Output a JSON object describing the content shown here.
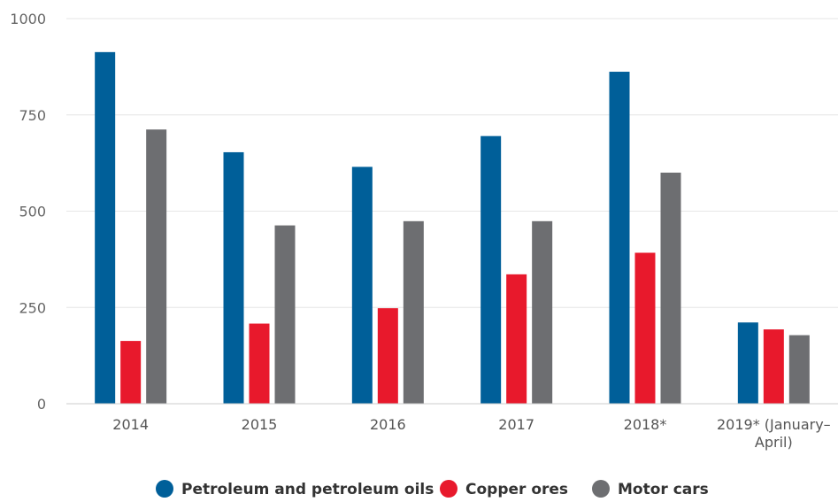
{
  "chart_data": {
    "type": "bar",
    "categories": [
      "2014",
      "2015",
      "2016",
      "2017",
      "2018*",
      "2019* (January–April)"
    ],
    "category_lines": [
      [
        "2014"
      ],
      [
        "2015"
      ],
      [
        "2016"
      ],
      [
        "2017"
      ],
      [
        "2018*"
      ],
      [
        "2019* (January–",
        "April)"
      ]
    ],
    "series": [
      {
        "name": "Petroleum and petroleum oils",
        "color": "#005f99",
        "values": [
          913,
          653,
          615,
          695,
          862,
          211
        ]
      },
      {
        "name": "Copper ores",
        "color": "#e8192c",
        "values": [
          163,
          208,
          248,
          336,
          392,
          193
        ]
      },
      {
        "name": "Motor cars",
        "color": "#6d6e71",
        "values": [
          712,
          463,
          474,
          474,
          600,
          178
        ]
      }
    ],
    "ylim": [
      0,
      1000
    ],
    "yticks": [
      0,
      250,
      500,
      750,
      1000
    ],
    "grid": true,
    "legend_position": "bottom-center",
    "title": "",
    "xlabel": "",
    "ylabel": ""
  }
}
